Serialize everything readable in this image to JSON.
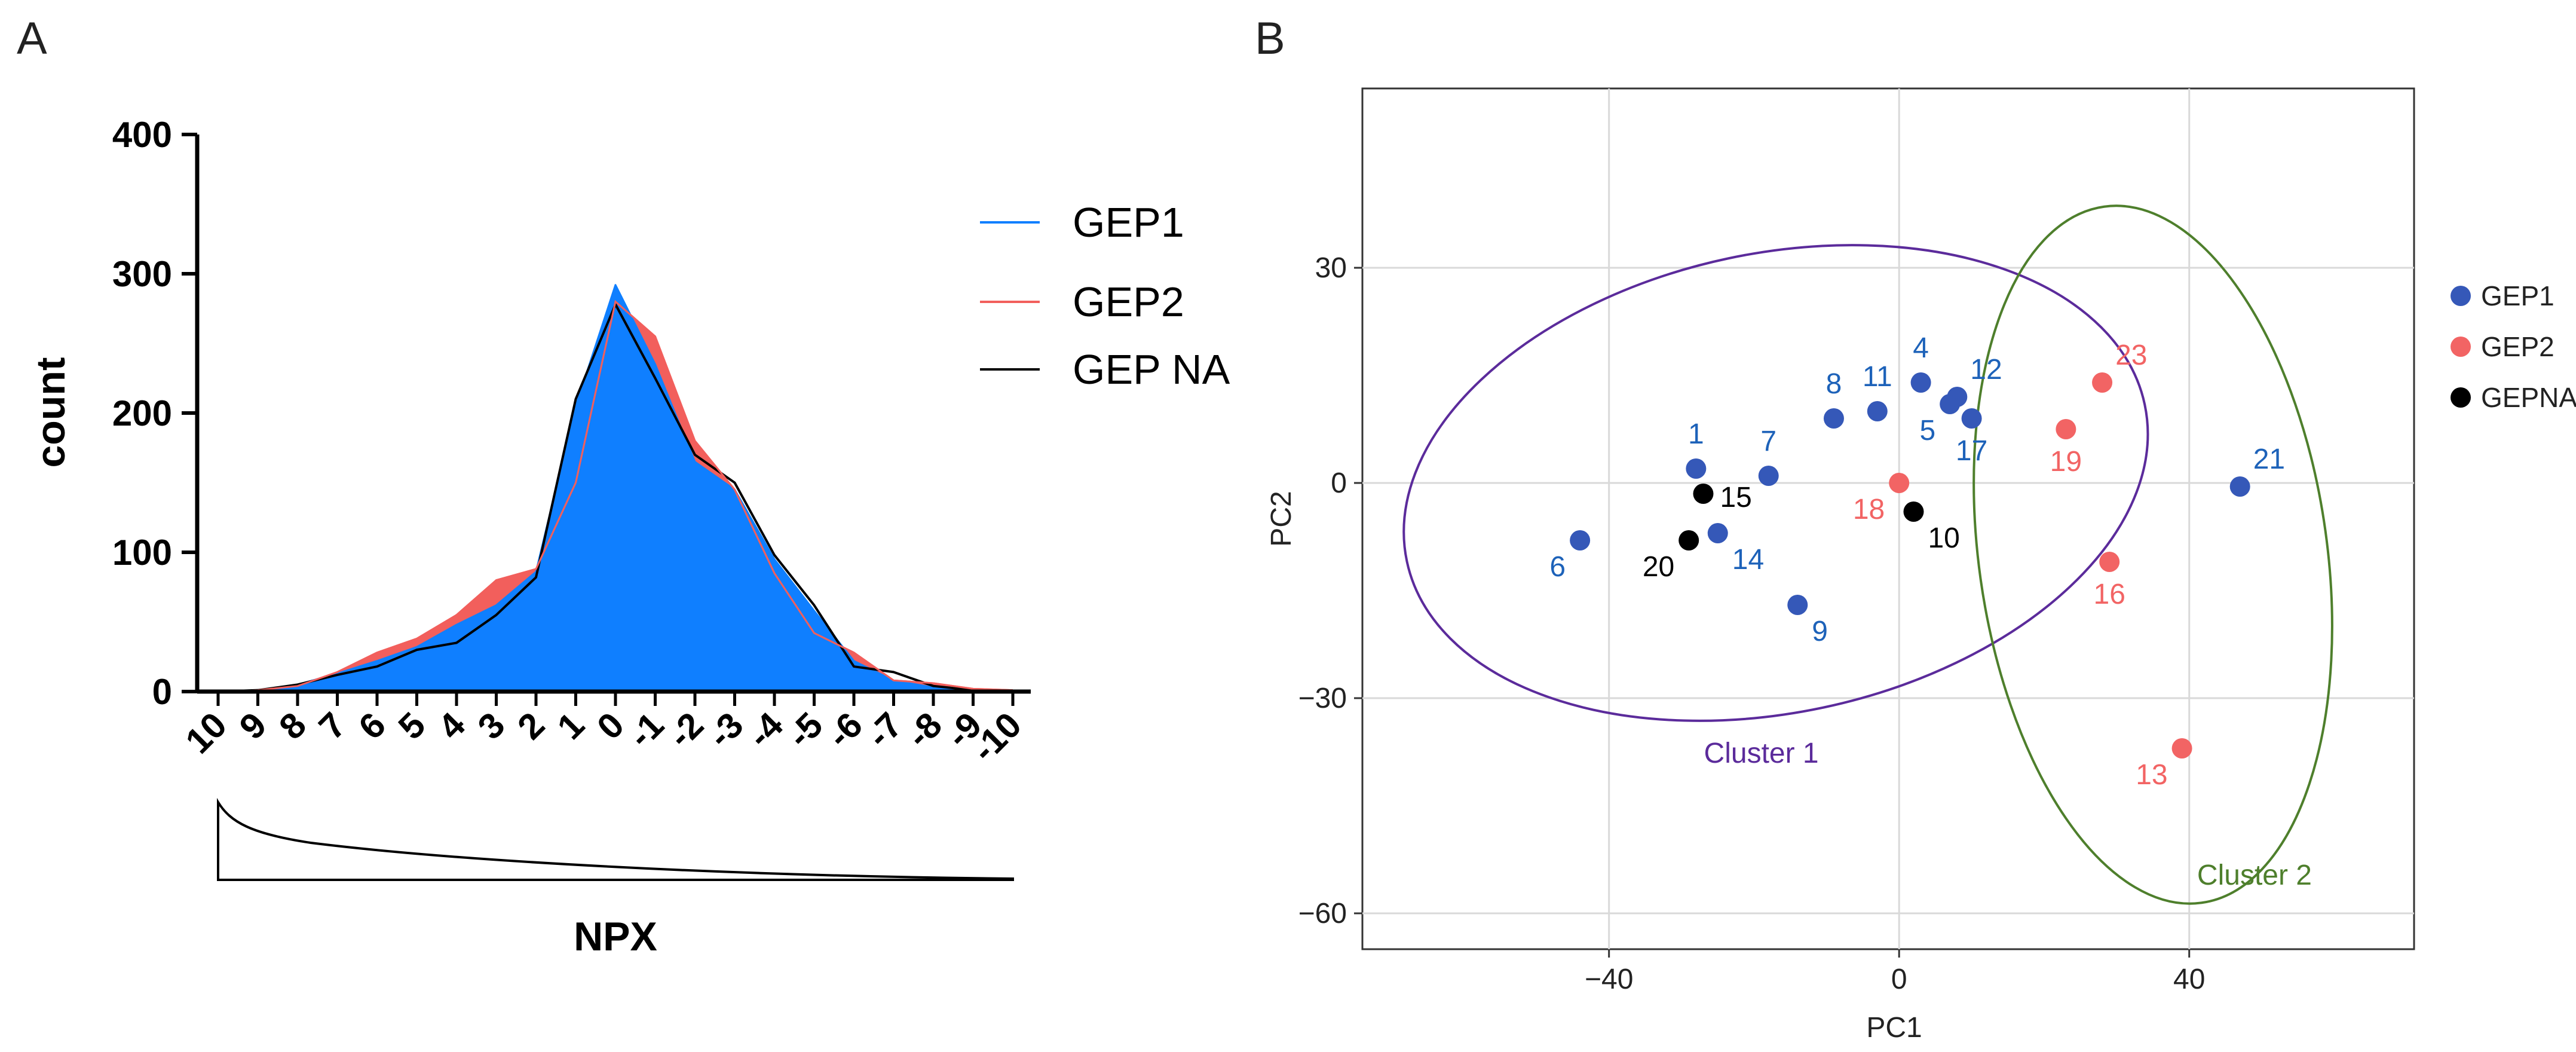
{
  "panels": {
    "a": "A",
    "b": "B"
  },
  "colors": {
    "gep1": "#0f7fff",
    "gep2": "#f25f5c",
    "gepna": "#000000",
    "gep1_pt": "#3558b8",
    "gep1_lbl": "#1d62b9",
    "gep2_pt": "#f26464",
    "cluster1": "#5b2b9b",
    "cluster2": "#4e7f2c"
  },
  "chart_data": [
    {
      "type": "area",
      "ylabel": "count",
      "xlabel": "NPX",
      "ylim": [
        0,
        400
      ],
      "yticks": [
        "0",
        "100",
        "200",
        "300",
        "400"
      ],
      "categories": [
        "10",
        "9",
        "8",
        "7",
        "6",
        "5",
        "4",
        "3",
        "2",
        "1",
        "0",
        "-1",
        "-2",
        "-3",
        "-4",
        "-5",
        "-6",
        "-7",
        "-8",
        "-9",
        "-10"
      ],
      "series": [
        {
          "name": "GEP2",
          "values": [
            0,
            1,
            4,
            14,
            28,
            38,
            55,
            80,
            88,
            150,
            280,
            255,
            180,
            145,
            85,
            42,
            28,
            8,
            6,
            2,
            1
          ]
        },
        {
          "name": "GEP1",
          "values": [
            0,
            1,
            5,
            13,
            22,
            32,
            48,
            62,
            86,
            205,
            292,
            235,
            165,
            145,
            95,
            58,
            22,
            8,
            3,
            1,
            0
          ]
        },
        {
          "name": "GEP NA",
          "values": [
            0,
            1,
            5,
            12,
            18,
            30,
            35,
            55,
            82,
            210,
            278,
            225,
            170,
            150,
            98,
            62,
            18,
            14,
            4,
            1,
            0
          ]
        }
      ],
      "legend": [
        "GEP1",
        "GEP2",
        "GEP NA"
      ],
      "legend_position": "top-right"
    },
    {
      "type": "scatter",
      "xlabel": "PC1",
      "ylabel": "PC2",
      "xlim": [
        -74,
        71
      ],
      "ylim": [
        -65,
        55
      ],
      "xticks": [
        -40,
        0,
        40
      ],
      "xtick_labels": [
        "−40",
        "0",
        "40"
      ],
      "yticks": [
        30,
        0,
        -30,
        -60
      ],
      "ytick_labels": [
        "30",
        "0",
        "−30",
        "−60"
      ],
      "grid": true,
      "legend": [
        "GEP1",
        "GEP2",
        "GEPNA"
      ],
      "legend_position": "right",
      "points": [
        {
          "id": "1",
          "group": "GEP1",
          "x": -28,
          "y": 2,
          "label_pos": "above"
        },
        {
          "id": "4",
          "group": "GEP1",
          "x": 3,
          "y": 14,
          "label_pos": "above"
        },
        {
          "id": "5",
          "group": "GEP1",
          "x": 7,
          "y": 11,
          "label_pos": "below-left"
        },
        {
          "id": "6",
          "group": "GEP1",
          "x": -44,
          "y": -8,
          "label_pos": "below-left"
        },
        {
          "id": "7",
          "group": "GEP1",
          "x": -18,
          "y": 1,
          "label_pos": "above"
        },
        {
          "id": "8",
          "group": "GEP1",
          "x": -9,
          "y": 9,
          "label_pos": "above"
        },
        {
          "id": "9",
          "group": "GEP1",
          "x": -14,
          "y": -17,
          "label_pos": "below-right"
        },
        {
          "id": "11",
          "group": "GEP1",
          "x": -3,
          "y": 10,
          "label_pos": "above"
        },
        {
          "id": "12",
          "group": "GEP1",
          "x": 8,
          "y": 12,
          "label_pos": "above-right"
        },
        {
          "id": "14",
          "group": "GEP1",
          "x": -25,
          "y": -7,
          "label_pos": "below-right"
        },
        {
          "id": "17",
          "group": "GEP1",
          "x": 10,
          "y": 9,
          "label_pos": "below"
        },
        {
          "id": "21",
          "group": "GEP1",
          "x": 47,
          "y": -0.5,
          "label_pos": "above-right"
        },
        {
          "id": "13",
          "group": "GEP2",
          "x": 39,
          "y": -37,
          "label_pos": "below-left"
        },
        {
          "id": "16",
          "group": "GEP2",
          "x": 29,
          "y": -11,
          "label_pos": "below"
        },
        {
          "id": "18",
          "group": "GEP2",
          "x": 0,
          "y": 0,
          "label_pos": "below-left"
        },
        {
          "id": "19",
          "group": "GEP2",
          "x": 23,
          "y": 7.5,
          "label_pos": "below"
        },
        {
          "id": "23",
          "group": "GEP2",
          "x": 28,
          "y": 14,
          "label_pos": "above-right"
        },
        {
          "id": "10",
          "group": "GEPNA",
          "x": 2,
          "y": -4,
          "label_pos": "below-right"
        },
        {
          "id": "15",
          "group": "GEPNA",
          "x": -27,
          "y": -1.5,
          "label_pos": "right"
        },
        {
          "id": "20",
          "group": "GEPNA",
          "x": -29,
          "y": -8,
          "label_pos": "below-left"
        }
      ],
      "clusters": [
        {
          "name": "Cluster 1",
          "cx": -17,
          "cy": 0,
          "rx": 52,
          "ry": 32,
          "angle": -12,
          "label_at": [
            -19,
            -39
          ]
        },
        {
          "name": "Cluster 2",
          "cx": 35,
          "cy": -10,
          "rx": 24,
          "ry": 49,
          "angle": -8,
          "label_at": [
            49,
            -56
          ]
        }
      ]
    }
  ]
}
